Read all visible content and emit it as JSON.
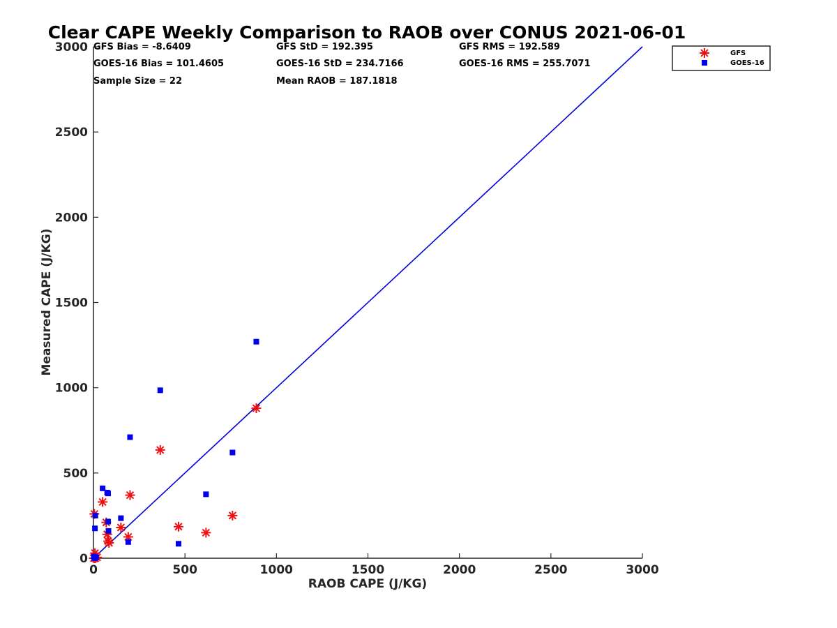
{
  "chart_data": {
    "type": "scatter",
    "title": "Clear CAPE Weekly Comparison to RAOB over CONUS 2021-06-01",
    "xlabel": "RAOB CAPE (J/KG)",
    "ylabel": "Measured CAPE (J/KG)",
    "xlim": [
      0,
      3000
    ],
    "ylim": [
      0,
      3000
    ],
    "x_ticks": [
      "0",
      "500",
      "1000",
      "1500",
      "2000",
      "2500",
      "3000"
    ],
    "y_ticks": [
      "0",
      "500",
      "1000",
      "1500",
      "2000",
      "2500",
      "3000"
    ],
    "grid": false,
    "legend_position": "top-right",
    "stats": [
      [
        "GFS Bias = -8.6409",
        "GFS StD = 192.395",
        "GFS RMS = 192.589"
      ],
      [
        "GOES-16 Bias = 101.4605",
        "GOES-16 StD = 234.7166",
        "GOES-16 RMS = 255.7071"
      ],
      [
        "Sample Size = 22",
        "Mean RAOB = 187.1818",
        ""
      ]
    ],
    "reference_line": {
      "x": [
        0,
        3000
      ],
      "y": [
        0,
        3000
      ],
      "color": "#0000dd"
    },
    "series": [
      {
        "name": "GFS",
        "marker": "asterisk",
        "color": "#ee1111",
        "points": [
          [
            2,
            0
          ],
          [
            8,
            30
          ],
          [
            5,
            260
          ],
          [
            10,
            0
          ],
          [
            20,
            5
          ],
          [
            50,
            330
          ],
          [
            70,
            210
          ],
          [
            75,
            140
          ],
          [
            80,
            100
          ],
          [
            85,
            90
          ],
          [
            150,
            180
          ],
          [
            190,
            125
          ],
          [
            200,
            370
          ],
          [
            365,
            635
          ],
          [
            465,
            185
          ],
          [
            615,
            150
          ],
          [
            760,
            250
          ],
          [
            890,
            880
          ]
        ]
      },
      {
        "name": "GOES-16",
        "marker": "square",
        "color": "#0000ee",
        "points": [
          [
            2,
            10
          ],
          [
            5,
            0
          ],
          [
            8,
            175
          ],
          [
            10,
            250
          ],
          [
            15,
            5
          ],
          [
            50,
            410
          ],
          [
            75,
            385
          ],
          [
            80,
            380
          ],
          [
            80,
            215
          ],
          [
            82,
            160
          ],
          [
            150,
            235
          ],
          [
            190,
            95
          ],
          [
            200,
            710
          ],
          [
            365,
            985
          ],
          [
            465,
            85
          ],
          [
            615,
            375
          ],
          [
            760,
            620
          ],
          [
            890,
            1270
          ]
        ]
      }
    ]
  }
}
